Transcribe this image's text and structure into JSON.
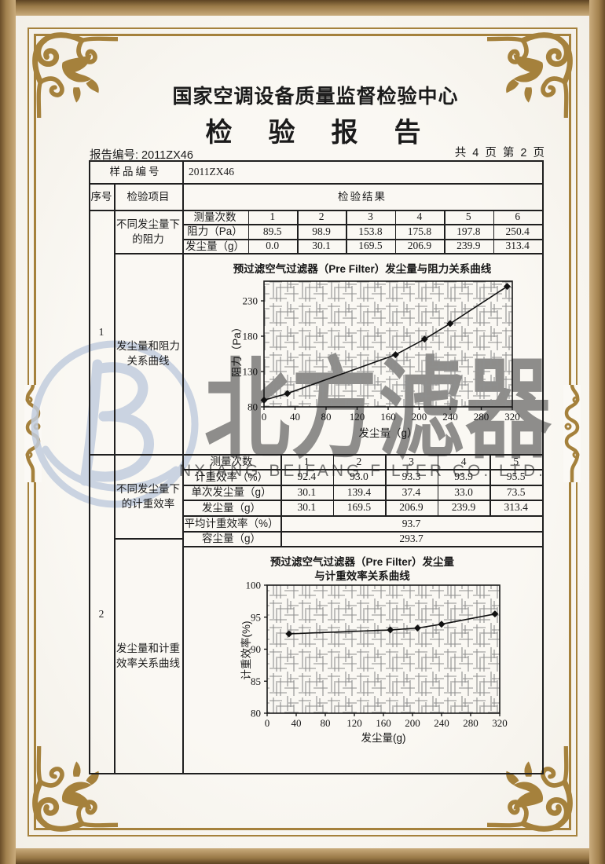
{
  "page": {
    "center_name": "国家空调设备质量监督检验中心",
    "report_title": "检　验　报　告",
    "report_no": "报告编号: 2011ZX46",
    "page_info": "共 4 页 第 2 页"
  },
  "sample": {
    "label": "样品编号",
    "value": "2011ZX46"
  },
  "columns": {
    "seq": "序号",
    "item": "检验项目",
    "result": "检验结果"
  },
  "group1": {
    "seq": "1",
    "item_top": "不同发尘量下的阻力",
    "item_bottom": "发尘量和阻力关系曲线",
    "table": {
      "label_counts": "测量次数",
      "label_resistance": "阻力（Pa）",
      "label_dust": "发尘量（g）",
      "counts": [
        "1",
        "2",
        "3",
        "4",
        "5",
        "6"
      ],
      "resistance": [
        "89.5",
        "98.9",
        "153.8",
        "175.8",
        "197.8",
        "250.4"
      ],
      "dust": [
        "0.0",
        "30.1",
        "169.5",
        "206.9",
        "239.9",
        "313.4"
      ]
    }
  },
  "group2": {
    "seq": "2",
    "item_top": "不同发尘量下的计重效率",
    "item_bottom": "发尘量和计重效率关系曲线",
    "table": {
      "label_counts": "测量次数",
      "label_eff": "计重效率（%）",
      "label_single": "单次发尘量（g）",
      "label_dust": "发尘量（g）",
      "label_avg": "平均计重效率（%）",
      "label_capacity": "容尘量（g）",
      "counts": [
        "1",
        "2",
        "3",
        "4",
        "5"
      ],
      "eff": [
        "92.4",
        "93.0",
        "93.3",
        "93.9",
        "95.5"
      ],
      "single": [
        "30.1",
        "139.4",
        "37.4",
        "33.0",
        "73.5"
      ],
      "dust": [
        "30.1",
        "169.5",
        "206.9",
        "239.9",
        "313.4"
      ],
      "avg": "93.7",
      "capacity": "293.7"
    }
  },
  "chart_data": [
    {
      "type": "line",
      "title": "预过滤空气过滤器（Pre Filter）发尘量与阻力关系曲线",
      "xlabel": "发尘量（g）",
      "ylabel": "阻力（Pa）",
      "x": [
        0,
        30.1,
        169.5,
        206.9,
        239.9,
        313.4
      ],
      "y": [
        89.5,
        98.9,
        153.8,
        175.8,
        197.8,
        250.4
      ],
      "xlim": [
        0,
        320
      ],
      "ylim": [
        80,
        257.8
      ],
      "xtick_step": 40,
      "yticks": [
        80,
        130,
        180,
        230
      ],
      "grid": "dense-hatch",
      "legend": "none",
      "marker": "diamond"
    },
    {
      "type": "line",
      "title": "预过滤空气过滤器（Pre Filter）发尘量与计重效率关系曲线",
      "title_lines": [
        "预过滤空气过滤器（Pre Filter）发尘量",
        "与计重效率关系曲线"
      ],
      "xlabel": "发尘量(g)",
      "ylabel": "计重效率(%)",
      "x": [
        30.1,
        169.5,
        206.9,
        239.9,
        313.4
      ],
      "y": [
        92.4,
        93.0,
        93.3,
        93.9,
        95.5
      ],
      "xlim": [
        0,
        320
      ],
      "ylim": [
        80,
        100
      ],
      "xtick_step": 40,
      "yticks": [
        80,
        85,
        90,
        95,
        100
      ],
      "grid": "dense-hatch",
      "legend": "none",
      "marker": "diamond"
    }
  ],
  "watermark": {
    "logo_letter": "B",
    "text_cn": "北方滤器",
    "text_en": "NXIANG BEIFANG FILTER CO. LTD."
  },
  "colors": {
    "frame_gold": "#a5813c",
    "band_tan": "#c9ab7c",
    "band_dark": "#5e4423",
    "ink": "#1b1b1b",
    "watermark_gray": "#9ba1a7",
    "watermark_blue": "#c2cdde"
  }
}
